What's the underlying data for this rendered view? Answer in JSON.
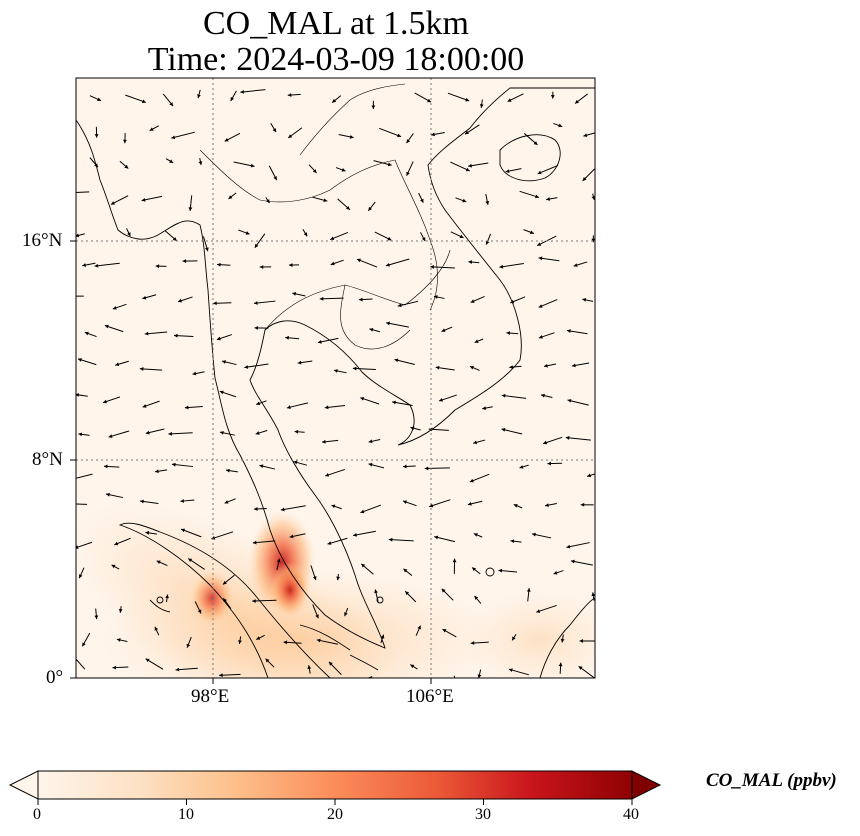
{
  "map": {
    "title_line1": "CO_MAL at 1.5km",
    "title_line2": "Time: 2024-03-09 18:00:00",
    "lon_ticks": [
      "98°E",
      "106°E"
    ],
    "lat_ticks": [
      "16°N",
      "8°N",
      "0°"
    ],
    "extent": {
      "lon_min": 93,
      "lon_max": 112,
      "lat_min": 0,
      "lat_max": 22
    },
    "gridlines": true,
    "field": "CO_MAL",
    "wind_vectors": true,
    "hotspots": [
      {
        "lon": 100.2,
        "lat": 4.2,
        "value": 33
      },
      {
        "lon": 100.6,
        "lat": 3.6,
        "value": 28
      },
      {
        "lon": 97.8,
        "lat": 2.9,
        "value": 22
      }
    ]
  },
  "colorbar": {
    "label": "CO_MAL (ppbv)",
    "ticks": [
      "0",
      "10",
      "20",
      "30",
      "40"
    ],
    "min": 0,
    "max": 40,
    "colormap": [
      "#fff5eb",
      "#fdd8b3",
      "#fdae6b",
      "#f16b42",
      "#d62f1e",
      "#a40508",
      "#7f0000"
    ],
    "extend": "both"
  },
  "colors": {
    "background": "#fff5eb",
    "coast": "#000000",
    "grid": "#777777"
  }
}
